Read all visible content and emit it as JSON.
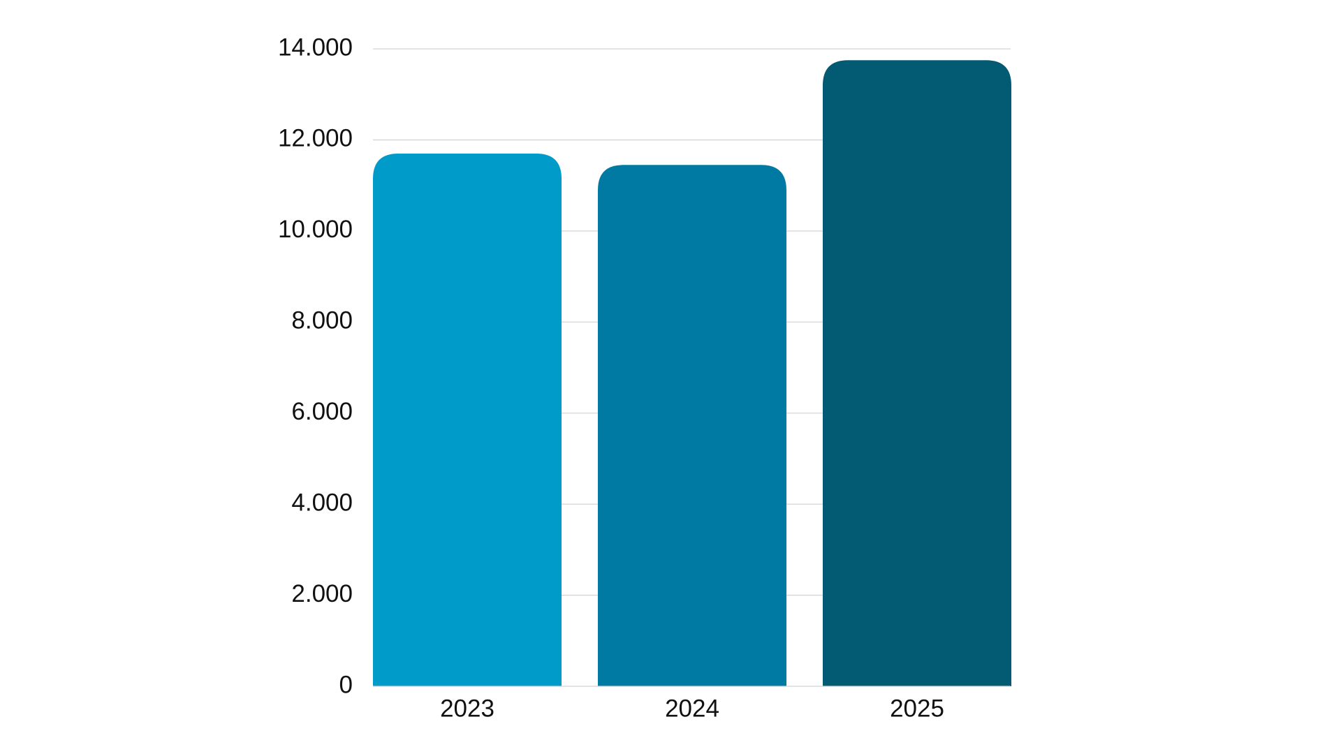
{
  "chart_data": {
    "type": "bar",
    "title": "",
    "xlabel": "",
    "ylabel": "",
    "categories": [
      "2023",
      "2024",
      "2025"
    ],
    "values": [
      11700,
      11450,
      13750
    ],
    "colors": [
      "#019bc9",
      "#007aa3",
      "#035a73"
    ],
    "ylim": [
      0,
      14000
    ],
    "yticks": [
      0,
      2000,
      4000,
      6000,
      8000,
      10000,
      12000,
      14000
    ],
    "ytick_labels": [
      "0",
      "2.000",
      "4.000",
      "6.000",
      "8.000",
      "10.000",
      "12.000",
      "14.000"
    ],
    "grid": true,
    "legend": "none"
  }
}
